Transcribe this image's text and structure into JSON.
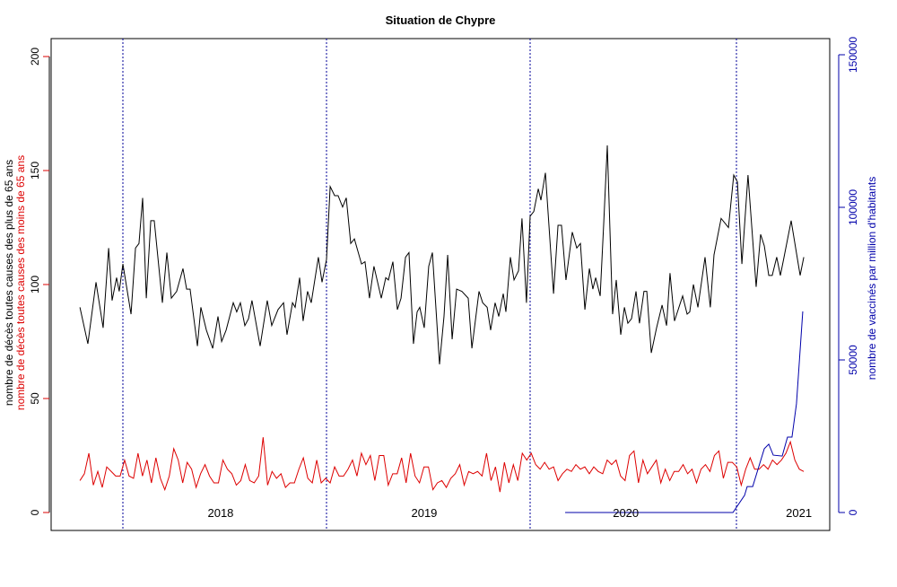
{
  "chart_data": {
    "type": "line",
    "title": "Situation de Chypre",
    "ylabel_left_black": "nombre de décès toutes causes des plus de 65 ans",
    "ylabel_left_red": "nombre de décès toutes causes des moins de 65 ans",
    "ylabel_right": "nombre de vaccinés par million d'habitants",
    "ylim_left": [
      0,
      200
    ],
    "yticks_left": [
      "0",
      "50",
      "100",
      "150",
      "200"
    ],
    "ylim_right": [
      0,
      150000
    ],
    "yticks_right": [
      "0",
      "50000",
      "100000",
      "150000"
    ],
    "year_labels": [
      {
        "label": "2018",
        "t": 2018.48
      },
      {
        "label": "2019",
        "t": 2019.48
      },
      {
        "label": "2020",
        "t": 2020.47
      },
      {
        "label": "2021",
        "t": 2021.32
      }
    ],
    "year_boundaries": [
      2018,
      2019,
      2020,
      2021
    ],
    "colors": {
      "over65": "#000000",
      "under65": "#dd0000",
      "vaccinated": "#0000aa",
      "boundary": "#000099"
    },
    "series": [
      {
        "name": "décès plus de 65 ans",
        "axis": "left",
        "points": [
          [
            2017.789,
            90
          ],
          [
            2017.828,
            74
          ],
          [
            2017.868,
            101
          ],
          [
            2017.903,
            81
          ],
          [
            2017.93,
            116
          ],
          [
            2017.947,
            93
          ],
          [
            2017.969,
            103
          ],
          [
            2017.982,
            97
          ],
          [
            2018.0,
            109
          ],
          [
            2018.04,
            87
          ],
          [
            2018.062,
            116
          ],
          [
            2018.079,
            118
          ],
          [
            2018.097,
            138
          ],
          [
            2018.115,
            94
          ],
          [
            2018.137,
            128
          ],
          [
            2018.154,
            128
          ],
          [
            2018.194,
            92
          ],
          [
            2018.216,
            114
          ],
          [
            2018.238,
            94
          ],
          [
            2018.264,
            97
          ],
          [
            2018.295,
            107
          ],
          [
            2018.313,
            98
          ],
          [
            2018.33,
            98
          ],
          [
            2018.366,
            73
          ],
          [
            2018.383,
            90
          ],
          [
            2018.41,
            80
          ],
          [
            2018.441,
            72
          ],
          [
            2018.467,
            86
          ],
          [
            2018.485,
            75
          ],
          [
            2018.507,
            80
          ],
          [
            2018.542,
            92
          ],
          [
            2018.559,
            88
          ],
          [
            2018.577,
            92
          ],
          [
            2018.599,
            82
          ],
          [
            2018.617,
            85
          ],
          [
            2018.634,
            93
          ],
          [
            2018.674,
            73
          ],
          [
            2018.709,
            93
          ],
          [
            2018.731,
            82
          ],
          [
            2018.762,
            89
          ],
          [
            2018.789,
            92
          ],
          [
            2018.806,
            78
          ],
          [
            2018.833,
            92
          ],
          [
            2018.846,
            90
          ],
          [
            2018.868,
            103
          ],
          [
            2018.885,
            84
          ],
          [
            2018.907,
            97
          ],
          [
            2018.925,
            92
          ],
          [
            2018.96,
            112
          ],
          [
            2018.978,
            101
          ],
          [
            2019.0,
            111
          ],
          [
            2019.018,
            143
          ],
          [
            2019.04,
            139
          ],
          [
            2019.057,
            139
          ],
          [
            2019.079,
            134
          ],
          [
            2019.097,
            138
          ],
          [
            2019.119,
            118
          ],
          [
            2019.137,
            120
          ],
          [
            2019.172,
            109
          ],
          [
            2019.189,
            110
          ],
          [
            2019.211,
            94
          ],
          [
            2019.233,
            108
          ],
          [
            2019.269,
            94
          ],
          [
            2019.291,
            103
          ],
          [
            2019.304,
            102
          ],
          [
            2019.326,
            110
          ],
          [
            2019.348,
            89
          ],
          [
            2019.366,
            94
          ],
          [
            2019.388,
            112
          ],
          [
            2019.405,
            114
          ],
          [
            2019.427,
            74
          ],
          [
            2019.445,
            88
          ],
          [
            2019.458,
            90
          ],
          [
            2019.48,
            81
          ],
          [
            2019.502,
            108
          ],
          [
            2019.52,
            114
          ],
          [
            2019.555,
            65
          ],
          [
            2019.577,
            86
          ],
          [
            2019.595,
            113
          ],
          [
            2019.617,
            76
          ],
          [
            2019.639,
            98
          ],
          [
            2019.665,
            97
          ],
          [
            2019.696,
            94
          ],
          [
            2019.714,
            72
          ],
          [
            2019.749,
            97
          ],
          [
            2019.767,
            92
          ],
          [
            2019.789,
            90
          ],
          [
            2019.806,
            80
          ],
          [
            2019.828,
            92
          ],
          [
            2019.846,
            86
          ],
          [
            2019.868,
            96
          ],
          [
            2019.881,
            88
          ],
          [
            2019.903,
            112
          ],
          [
            2019.921,
            102
          ],
          [
            2019.943,
            106
          ],
          [
            2019.96,
            129
          ],
          [
            2019.982,
            92
          ],
          [
            2020.0,
            130
          ],
          [
            2020.018,
            132
          ],
          [
            2020.04,
            142
          ],
          [
            2020.053,
            137
          ],
          [
            2020.075,
            149
          ],
          [
            2020.115,
            96
          ],
          [
            2020.137,
            126
          ],
          [
            2020.154,
            126
          ],
          [
            2020.176,
            102
          ],
          [
            2020.207,
            123
          ],
          [
            2020.229,
            116
          ],
          [
            2020.247,
            118
          ],
          [
            2020.269,
            89
          ],
          [
            2020.291,
            107
          ],
          [
            2020.308,
            98
          ],
          [
            2020.322,
            103
          ],
          [
            2020.344,
            95
          ],
          [
            2020.361,
            126
          ],
          [
            2020.379,
            161
          ],
          [
            2020.405,
            87
          ],
          [
            2020.423,
            102
          ],
          [
            2020.445,
            78
          ],
          [
            2020.463,
            90
          ],
          [
            2020.48,
            83
          ],
          [
            2020.498,
            85
          ],
          [
            2020.52,
            97
          ],
          [
            2020.537,
            83
          ],
          [
            2020.559,
            97
          ],
          [
            2020.573,
            97
          ],
          [
            2020.595,
            70
          ],
          [
            2020.621,
            81
          ],
          [
            2020.648,
            91
          ],
          [
            2020.67,
            82
          ],
          [
            2020.687,
            105
          ],
          [
            2020.709,
            84
          ],
          [
            2020.749,
            95
          ],
          [
            2020.771,
            87
          ],
          [
            2020.784,
            88
          ],
          [
            2020.802,
            100
          ],
          [
            2020.824,
            90
          ],
          [
            2020.859,
            112
          ],
          [
            2020.885,
            90
          ],
          [
            2020.903,
            113
          ],
          [
            2020.938,
            129
          ],
          [
            2020.974,
            125
          ],
          [
            2021.0,
            148
          ],
          [
            2021.018,
            145
          ],
          [
            2021.04,
            109
          ],
          [
            2021.07,
            148
          ],
          [
            2021.11,
            99
          ],
          [
            2021.132,
            122
          ],
          [
            2021.15,
            117
          ],
          [
            2021.172,
            104
          ],
          [
            2021.189,
            104
          ],
          [
            2021.211,
            112
          ],
          [
            2021.229,
            104
          ],
          [
            2021.247,
            112
          ],
          [
            2021.282,
            128
          ],
          [
            2021.326,
            104
          ],
          [
            2021.344,
            112
          ]
        ]
      },
      {
        "name": "décès moins de 65 ans",
        "axis": "left",
        "t_start": 2017.789,
        "t_end": 2021.344,
        "values": [
          14,
          17,
          26,
          12,
          18,
          11,
          20,
          18,
          16,
          16,
          23,
          16,
          15,
          26,
          16,
          23,
          13,
          24,
          15,
          10,
          16,
          28,
          23,
          13,
          22,
          19,
          11,
          17,
          21,
          16,
          13,
          13,
          23,
          19,
          17,
          12,
          14,
          21,
          14,
          13,
          16,
          33,
          12,
          18,
          15,
          17,
          11,
          13,
          13,
          19,
          24,
          15,
          13,
          23,
          13,
          15,
          13,
          20,
          16,
          16,
          19,
          23,
          16,
          26,
          21,
          25,
          14,
          25,
          25,
          12,
          17,
          17,
          24,
          13,
          26,
          16,
          13,
          20,
          20,
          10,
          13,
          14,
          11,
          15,
          17,
          21,
          12,
          18,
          17,
          18,
          16,
          26,
          14,
          20,
          9,
          22,
          13,
          21,
          14,
          26,
          23,
          26,
          21,
          19,
          22,
          19,
          20,
          14,
          17,
          19,
          18,
          21,
          19,
          20,
          17,
          20,
          18,
          17,
          23,
          21,
          23,
          16,
          14,
          25,
          27,
          13,
          23,
          17,
          20,
          23,
          13,
          19,
          14,
          18,
          18,
          21,
          17,
          19,
          13,
          19,
          21,
          18,
          25,
          27,
          15,
          22,
          22,
          20,
          12,
          19,
          24,
          19,
          19,
          21,
          19,
          23,
          21,
          23,
          26,
          31,
          23,
          19,
          18
        ]
      },
      {
        "name": "vaccinés par million",
        "axis": "right",
        "points": [
          [
            2020.172,
            0
          ],
          [
            2020.996,
            0
          ],
          [
            2021.053,
            5600
          ],
          [
            2021.066,
            8500
          ],
          [
            2021.093,
            8500
          ],
          [
            2021.15,
            20900
          ],
          [
            2021.172,
            22400
          ],
          [
            2021.194,
            18800
          ],
          [
            2021.238,
            18500
          ],
          [
            2021.264,
            24700
          ],
          [
            2021.286,
            24700
          ],
          [
            2021.308,
            35600
          ],
          [
            2021.339,
            65900
          ]
        ]
      }
    ]
  }
}
